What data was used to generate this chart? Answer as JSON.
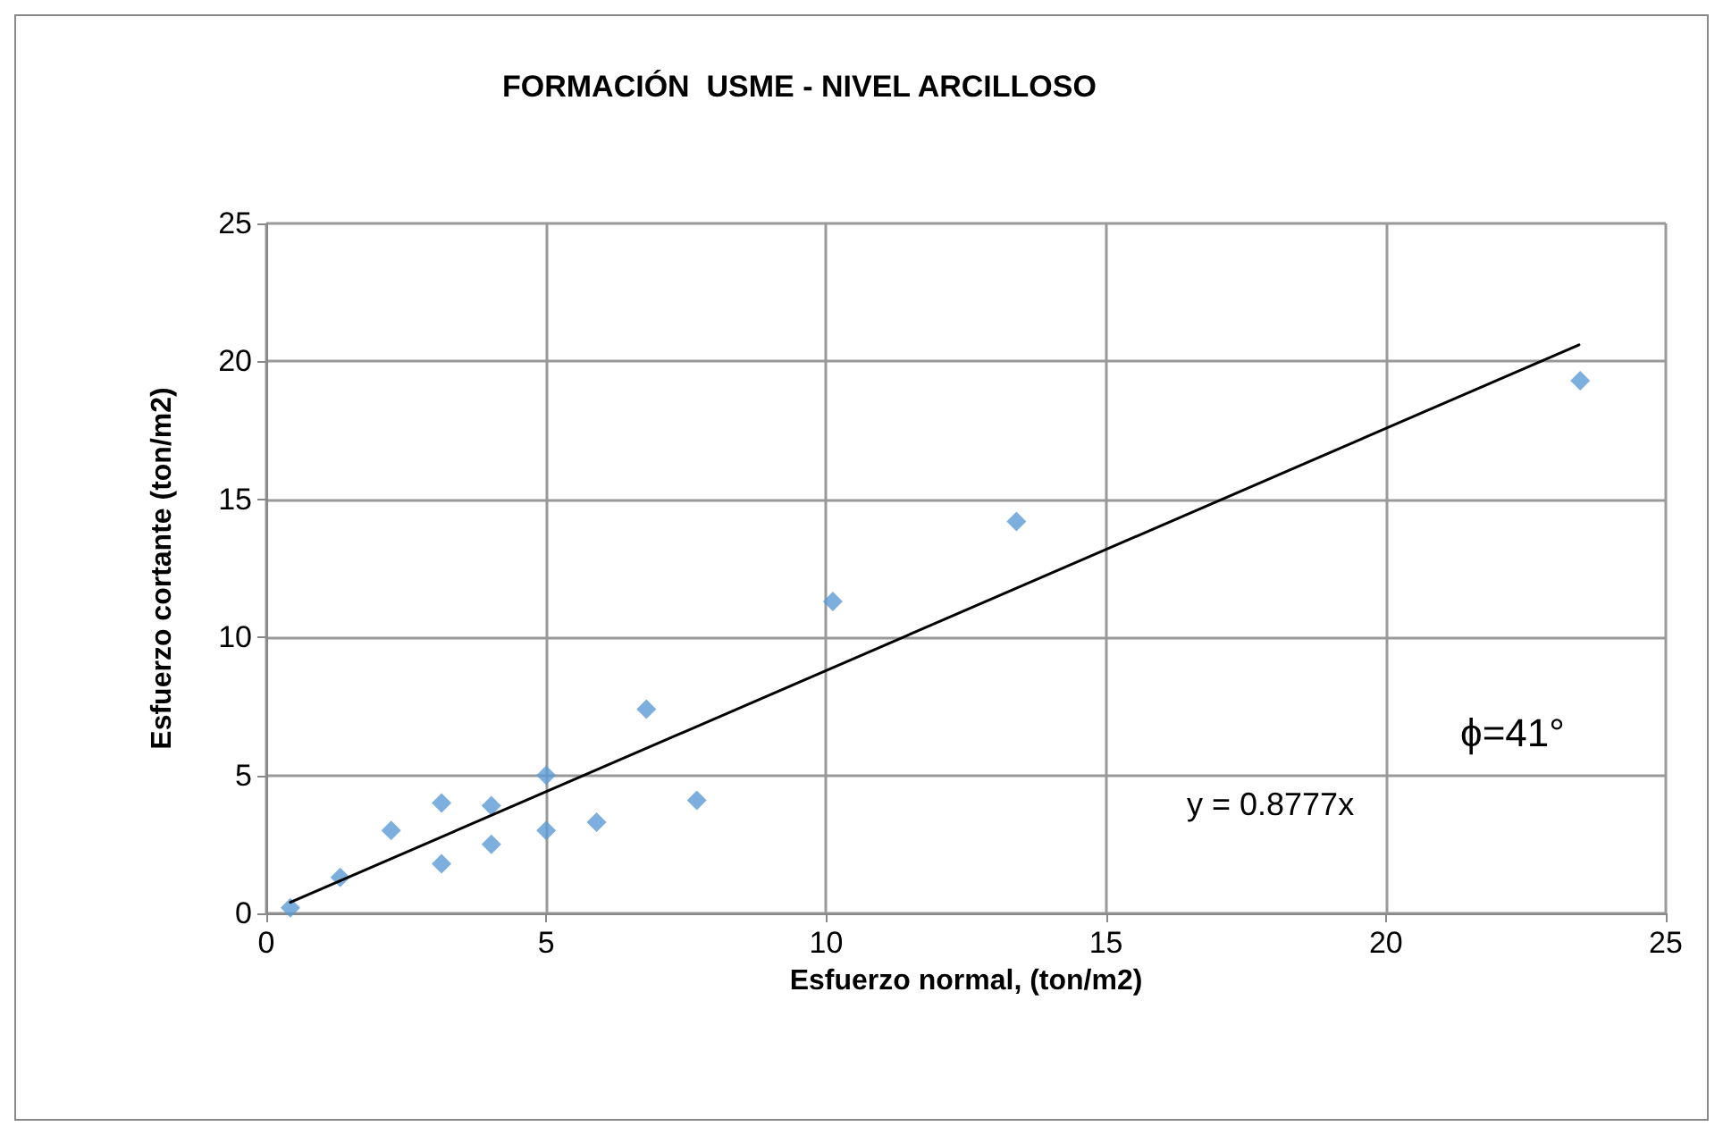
{
  "chart_data": {
    "type": "scatter",
    "title": "FORMACIÓN  USME - NIVEL ARCILLOSO",
    "xlabel": "Esfuerzo normal, (ton/m2)",
    "ylabel": "Esfuerzo cortante (ton/m2)",
    "x": [
      0.43,
      1.32,
      2.23,
      3.13,
      3.13,
      4.02,
      4.02,
      5.0,
      5.0,
      5.9,
      6.79,
      7.69,
      10.12,
      13.4,
      23.47
    ],
    "series": [
      {
        "color": "#5b9bd5",
        "marker": "diamond",
        "values": [
          0.2,
          1.3,
          3.0,
          4.0,
          1.8,
          3.9,
          2.5,
          5.0,
          3.0,
          3.3,
          7.4,
          4.1,
          11.3,
          14.2,
          19.3
        ]
      },
      {
        "type": "line",
        "color": "#000000",
        "marker": "none",
        "x": [
          0.43,
          23.45
        ],
        "values": [
          0.4,
          20.6
        ]
      }
    ],
    "annotations": [
      "y = 0.8777x",
      "ϕ=41°"
    ],
    "xlim": [
      0,
      25
    ],
    "ylim": [
      0,
      25
    ],
    "xticks": [
      0,
      5,
      10,
      15,
      20,
      25
    ],
    "yticks": [
      0,
      5,
      10,
      15,
      20,
      25
    ],
    "grid": true
  }
}
